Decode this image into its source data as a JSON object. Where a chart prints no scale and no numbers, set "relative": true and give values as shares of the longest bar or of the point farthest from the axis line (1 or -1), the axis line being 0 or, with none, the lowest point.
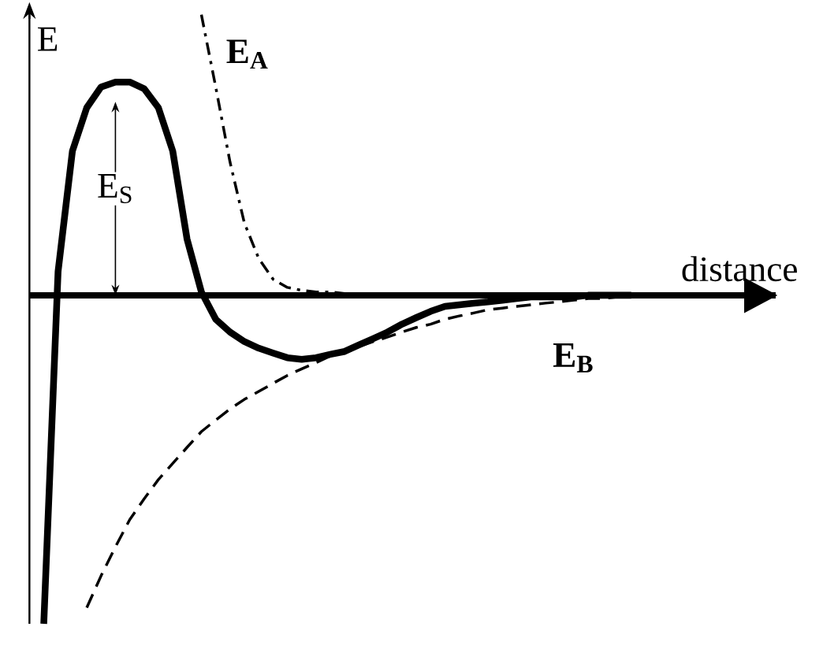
{
  "chart_data": {
    "type": "line",
    "relative": true,
    "xlabel": "distance",
    "ylabel": "E",
    "marker": "none",
    "annotations": [
      "E$_{S}$"
    ],
    "categories": [
      null,
      null,
      null,
      null,
      null,
      null,
      null,
      null,
      null,
      null,
      null,
      null,
      null,
      null,
      null,
      null,
      null,
      null,
      null,
      null,
      null,
      null,
      null,
      null,
      null,
      null,
      null,
      null,
      null,
      null,
      null,
      null,
      null,
      null,
      null,
      null,
      null,
      null,
      null,
      null,
      null,
      null,
      null
    ],
    "series": [
      {
        "color": "#000000",
        "line_style": "solid",
        "values": [
          null,
          -1.0,
          0.073,
          0.439,
          0.571,
          0.634,
          0.649,
          0.649,
          0.629,
          0.571,
          0.439,
          0.171,
          0.01,
          -0.073,
          -0.112,
          -0.141,
          -0.161,
          -0.176,
          -0.19,
          -0.195,
          -0.19,
          -0.18,
          -0.171,
          -0.151,
          -0.132,
          -0.112,
          -0.088,
          -0.068,
          -0.049,
          -0.034,
          -0.029,
          -0.024,
          -0.02,
          -0.015,
          -0.01,
          -0.005,
          -0.005,
          -0.005,
          -0.005,
          0,
          0,
          0,
          0
        ]
      },
      {
        "name": "E$_{A}$",
        "color": "#000000",
        "line_style": "dashdot",
        "values": [
          null,
          null,
          null,
          null,
          null,
          null,
          null,
          null,
          null,
          null,
          null,
          null,
          0.854,
          0.634,
          0.405,
          0.22,
          0.112,
          0.049,
          0.024,
          0.015,
          0.01,
          0.01,
          0.005,
          0.005,
          0.005,
          0,
          0,
          0,
          0,
          0,
          0,
          0,
          0,
          0,
          0,
          0,
          0,
          0,
          0,
          null,
          null,
          null,
          null
        ]
      },
      {
        "name": "E$_{B}$",
        "color": "#000000",
        "line_style": "dashed",
        "values": [
          null,
          null,
          null,
          null,
          -0.951,
          -0.854,
          -0.766,
          -0.683,
          -0.62,
          -0.561,
          -0.512,
          -0.463,
          -0.415,
          -0.38,
          -0.346,
          -0.317,
          -0.293,
          -0.268,
          -0.244,
          -0.224,
          -0.205,
          -0.185,
          -0.171,
          -0.156,
          -0.141,
          -0.127,
          -0.112,
          -0.098,
          -0.088,
          -0.073,
          -0.063,
          -0.054,
          -0.044,
          -0.039,
          -0.034,
          -0.029,
          -0.024,
          -0.02,
          -0.015,
          -0.01,
          -0.01,
          -0.005,
          -0.005
        ]
      }
    ]
  }
}
